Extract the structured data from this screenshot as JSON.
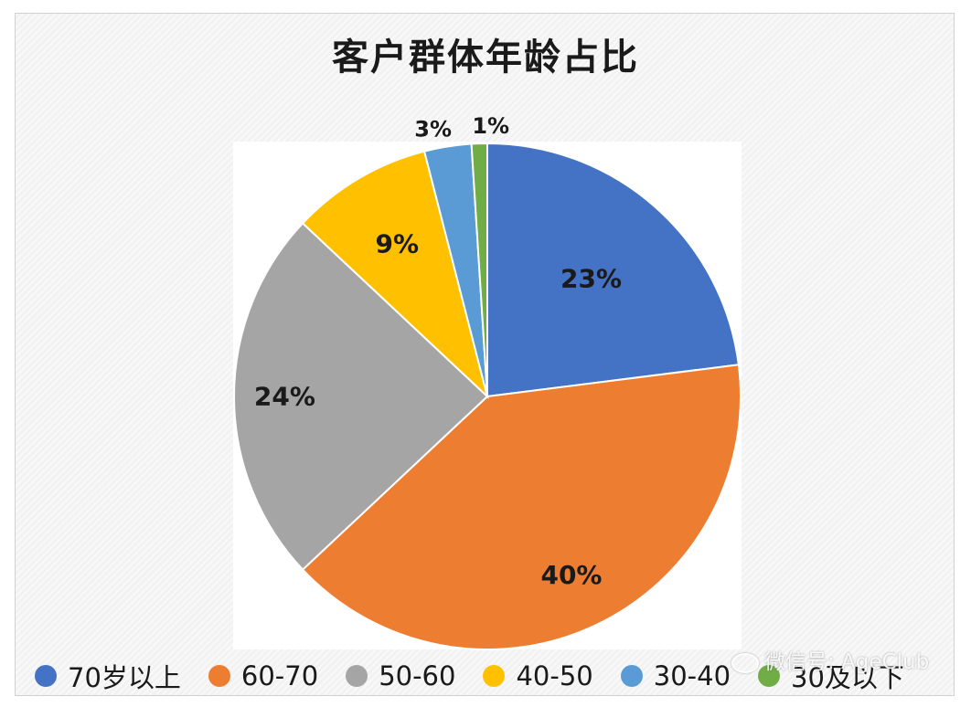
{
  "chart_data": {
    "type": "pie",
    "title": "客户群体年龄占比",
    "categories": [
      "70岁以上",
      "60-70",
      "50-60",
      "40-50",
      "30-40",
      "30及以下"
    ],
    "values": [
      23,
      40,
      24,
      9,
      3,
      1
    ],
    "data_labels": [
      "23%",
      "40%",
      "24%",
      "9%",
      "3%",
      "1%"
    ],
    "colors": [
      "#4472c4",
      "#ed7d31",
      "#a5a5a5",
      "#ffc000",
      "#5b9bd5",
      "#70ad47"
    ],
    "start_angle_deg": 0,
    "direction": "clockwise",
    "legend_position": "bottom"
  },
  "watermark": "微信号: AgeClub"
}
